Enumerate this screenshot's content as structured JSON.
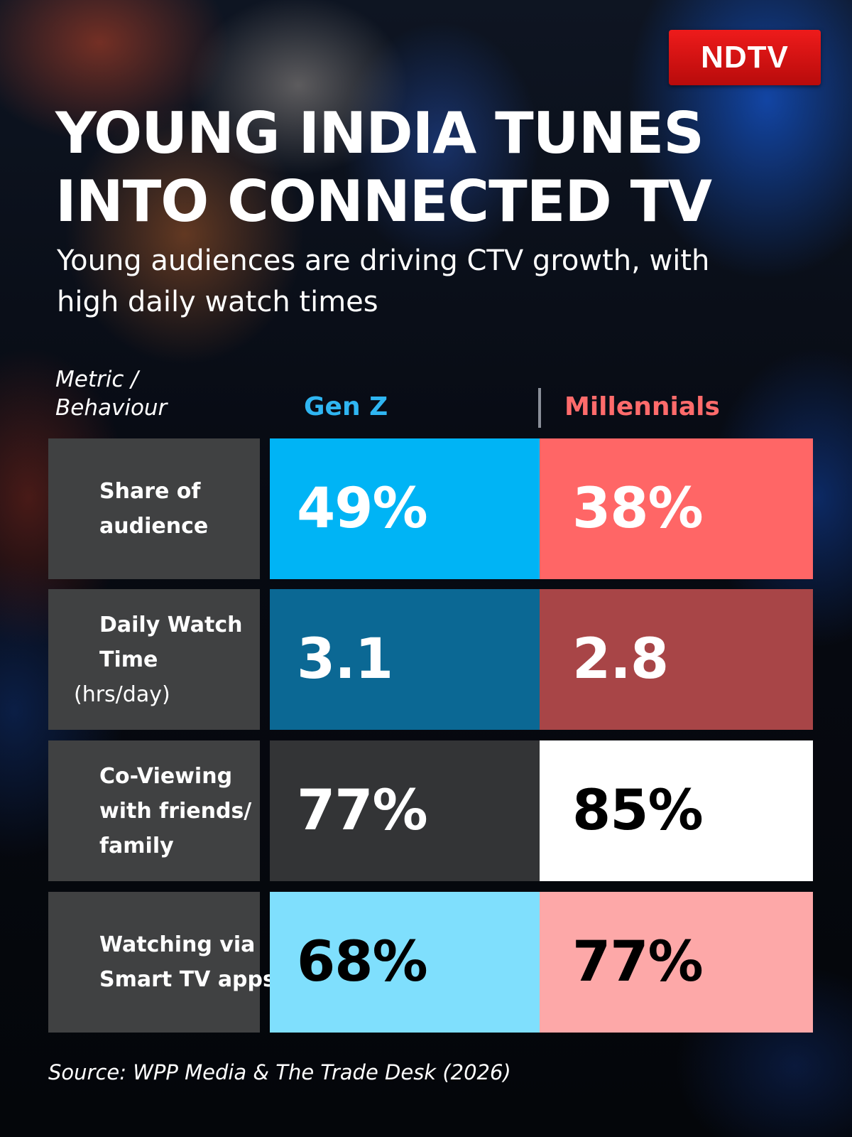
{
  "brand": {
    "logo_text": "NDTV",
    "logo_color": "#e3120f"
  },
  "chart_data": {
    "type": "table",
    "title": "YOUNG INDIA TUNES INTO CONNECTED TV",
    "subtitle": "Young audiences are driving CTV growth, with high daily watch times",
    "columns": [
      "Metric / Behaviour",
      "Gen Z",
      "Millennials"
    ],
    "series_colors": {
      "Gen Z": "#00b4f5",
      "Millennials": "#ff6666"
    },
    "rows": [
      {
        "metric": "Share of audience",
        "unit": "",
        "genz": "49%",
        "millennials": "38%",
        "genz_value": 49,
        "millennials_value": 38,
        "genz_bg": "#00b4f5",
        "genz_fg": "#ffffff",
        "mill_bg": "#ff6666",
        "mill_fg": "#ffffff"
      },
      {
        "metric": "Daily Watch Time",
        "unit": "(hrs/day)",
        "genz": "3.1",
        "millennials": "2.8",
        "genz_value": 3.1,
        "millennials_value": 2.8,
        "genz_bg": "#0b6894",
        "genz_fg": "#ffffff",
        "mill_bg": "#a84547",
        "mill_fg": "#ffffff"
      },
      {
        "metric": "Co-Viewing with friends/ family",
        "unit": "",
        "genz": "77%",
        "millennials": "85%",
        "genz_value": 77,
        "millennials_value": 85,
        "genz_bg": "#333436",
        "genz_fg": "#ffffff",
        "mill_bg": "#ffffff",
        "mill_fg": "#000000"
      },
      {
        "metric": "Watching via Smart TV apps",
        "unit": "",
        "genz": "68%",
        "millennials": "77%",
        "genz_value": 68,
        "millennials_value": 77,
        "genz_bg": "#7fdffd",
        "genz_fg": "#000000",
        "mill_bg": "#fda8a8",
        "mill_fg": "#000000"
      }
    ],
    "source": "Source: WPP Media & The Trade Desk (2026)"
  }
}
